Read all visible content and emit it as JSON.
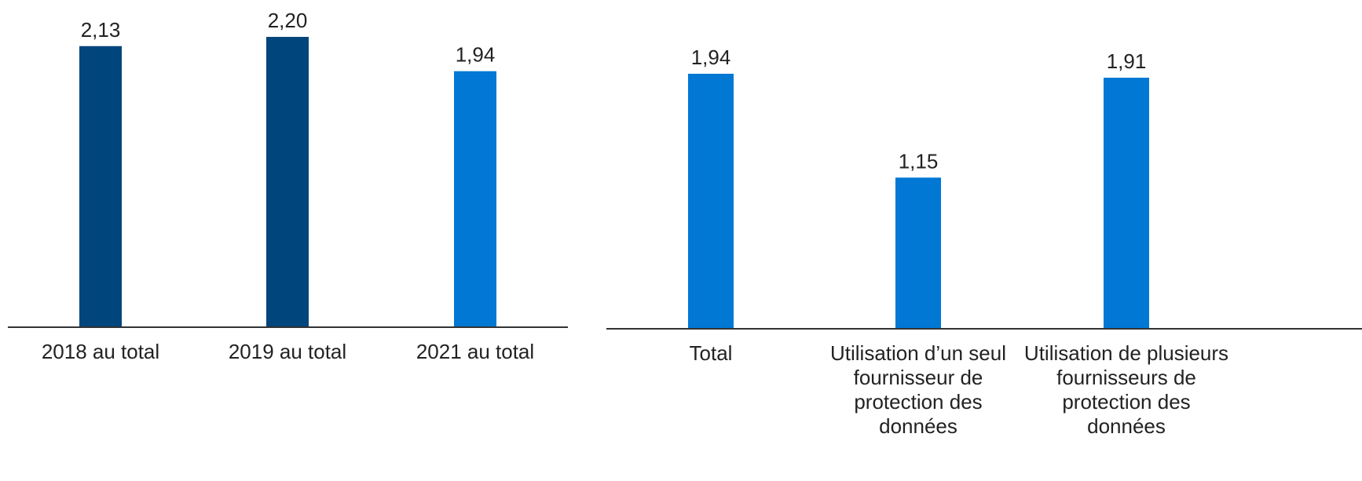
{
  "colors": {
    "dark_blue": "#00457C",
    "light_blue": "#0078D4",
    "axis": "#333333"
  },
  "chart_data": [
    {
      "type": "bar",
      "categories": [
        "2018 au total",
        "2019 au total",
        "2021 au total"
      ],
      "values": [
        2.13,
        2.2,
        1.94
      ],
      "value_labels": [
        "2,13",
        "2,20",
        "1,94"
      ],
      "bar_colors": [
        "#00457C",
        "#00457C",
        "#0078D4"
      ],
      "ylim": [
        0,
        2.2
      ],
      "grid": false,
      "title": "",
      "xlabel": "",
      "ylabel": ""
    },
    {
      "type": "bar",
      "categories": [
        "Total",
        "Utilisation d’un seul fournisseur de protection des données",
        "Utilisation de plusieurs fournisseurs de protection des données"
      ],
      "category_lines": [
        [
          "Total"
        ],
        [
          "Utilisation d’un seul",
          "fournisseur de",
          "protection des",
          "données"
        ],
        [
          "Utilisation de plusieurs",
          "fournisseurs de",
          "protection des",
          "données"
        ]
      ],
      "values": [
        1.94,
        1.15,
        1.91
      ],
      "value_labels": [
        "1,94",
        "1,15",
        "1,91"
      ],
      "bar_colors": [
        "#0078D4",
        "#0078D4",
        "#0078D4"
      ],
      "ylim": [
        0,
        1.94
      ],
      "grid": false,
      "title": "",
      "xlabel": "",
      "ylabel": ""
    }
  ]
}
